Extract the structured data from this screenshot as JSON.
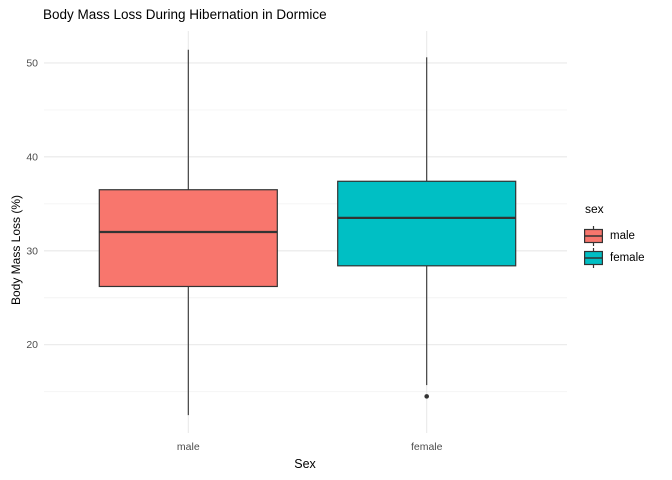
{
  "page": {
    "title": "Body Mass Loss During Hibernation in Dormice"
  },
  "chart_data": {
    "type": "boxplot",
    "title": "Body Mass Loss During Hibernation in Dormice",
    "xlabel": "Sex",
    "ylabel": "Body Mass Loss (%)",
    "categories": [
      "male",
      "female"
    ],
    "ylim": [
      10.6,
      53.4
    ],
    "y_major_ticks": [
      20,
      30,
      40,
      50
    ],
    "y_minor_ticks": [
      15,
      25,
      35,
      45
    ],
    "grid": {
      "horizontal": "major+minor",
      "vertical": "major at category centers",
      "background": "white"
    },
    "legend": {
      "title": "sex",
      "position": "right",
      "entries": [
        {
          "label": "male",
          "color": "#F8766D"
        },
        {
          "label": "female",
          "color": "#00BFC4"
        }
      ]
    },
    "series": [
      {
        "name": "male",
        "color": "#F8766D",
        "whisker_low": 12.5,
        "q1": 26.2,
        "median": 32.0,
        "q3": 36.5,
        "whisker_high": 51.4,
        "outliers": []
      },
      {
        "name": "female",
        "color": "#00BFC4",
        "whisker_low": 15.7,
        "q1": 28.4,
        "median": 33.5,
        "q3": 37.4,
        "whisker_high": 50.6,
        "outliers": [
          14.5
        ]
      }
    ]
  },
  "colors": {
    "box_stroke": "#333333",
    "grid_major": "#E9E9E9",
    "grid_minor": "#F4F4F4",
    "axis_text": "#4D4D4D",
    "outlier": "#333333"
  }
}
